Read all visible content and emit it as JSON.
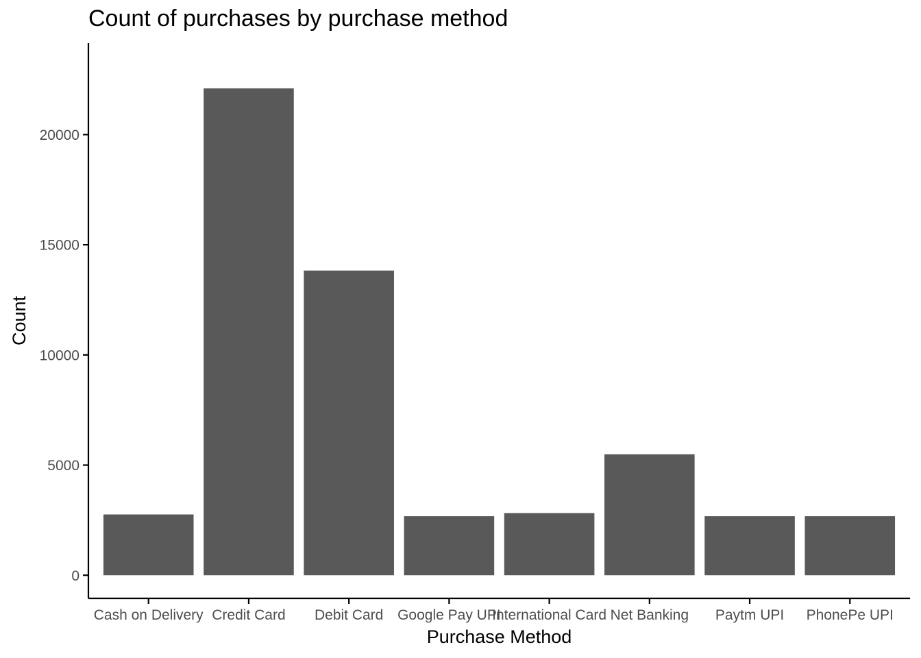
{
  "chart_data": {
    "type": "bar",
    "title": "Count of purchases by purchase method",
    "xlabel": "Purchase Method",
    "ylabel": "Count",
    "categories": [
      "Cash on Delivery",
      "Credit Card",
      "Debit Card",
      "Google Pay UPI",
      "International Card",
      "Net Banking",
      "Paytm UPI",
      "PhonePe UPI"
    ],
    "values": [
      2760,
      22100,
      13830,
      2680,
      2820,
      5490,
      2680,
      2680
    ],
    "ylim": [
      -1050,
      24150
    ],
    "yticks": [
      0,
      5000,
      10000,
      15000,
      20000
    ],
    "bar_color": "#595959",
    "grid": false,
    "legend": "none"
  }
}
